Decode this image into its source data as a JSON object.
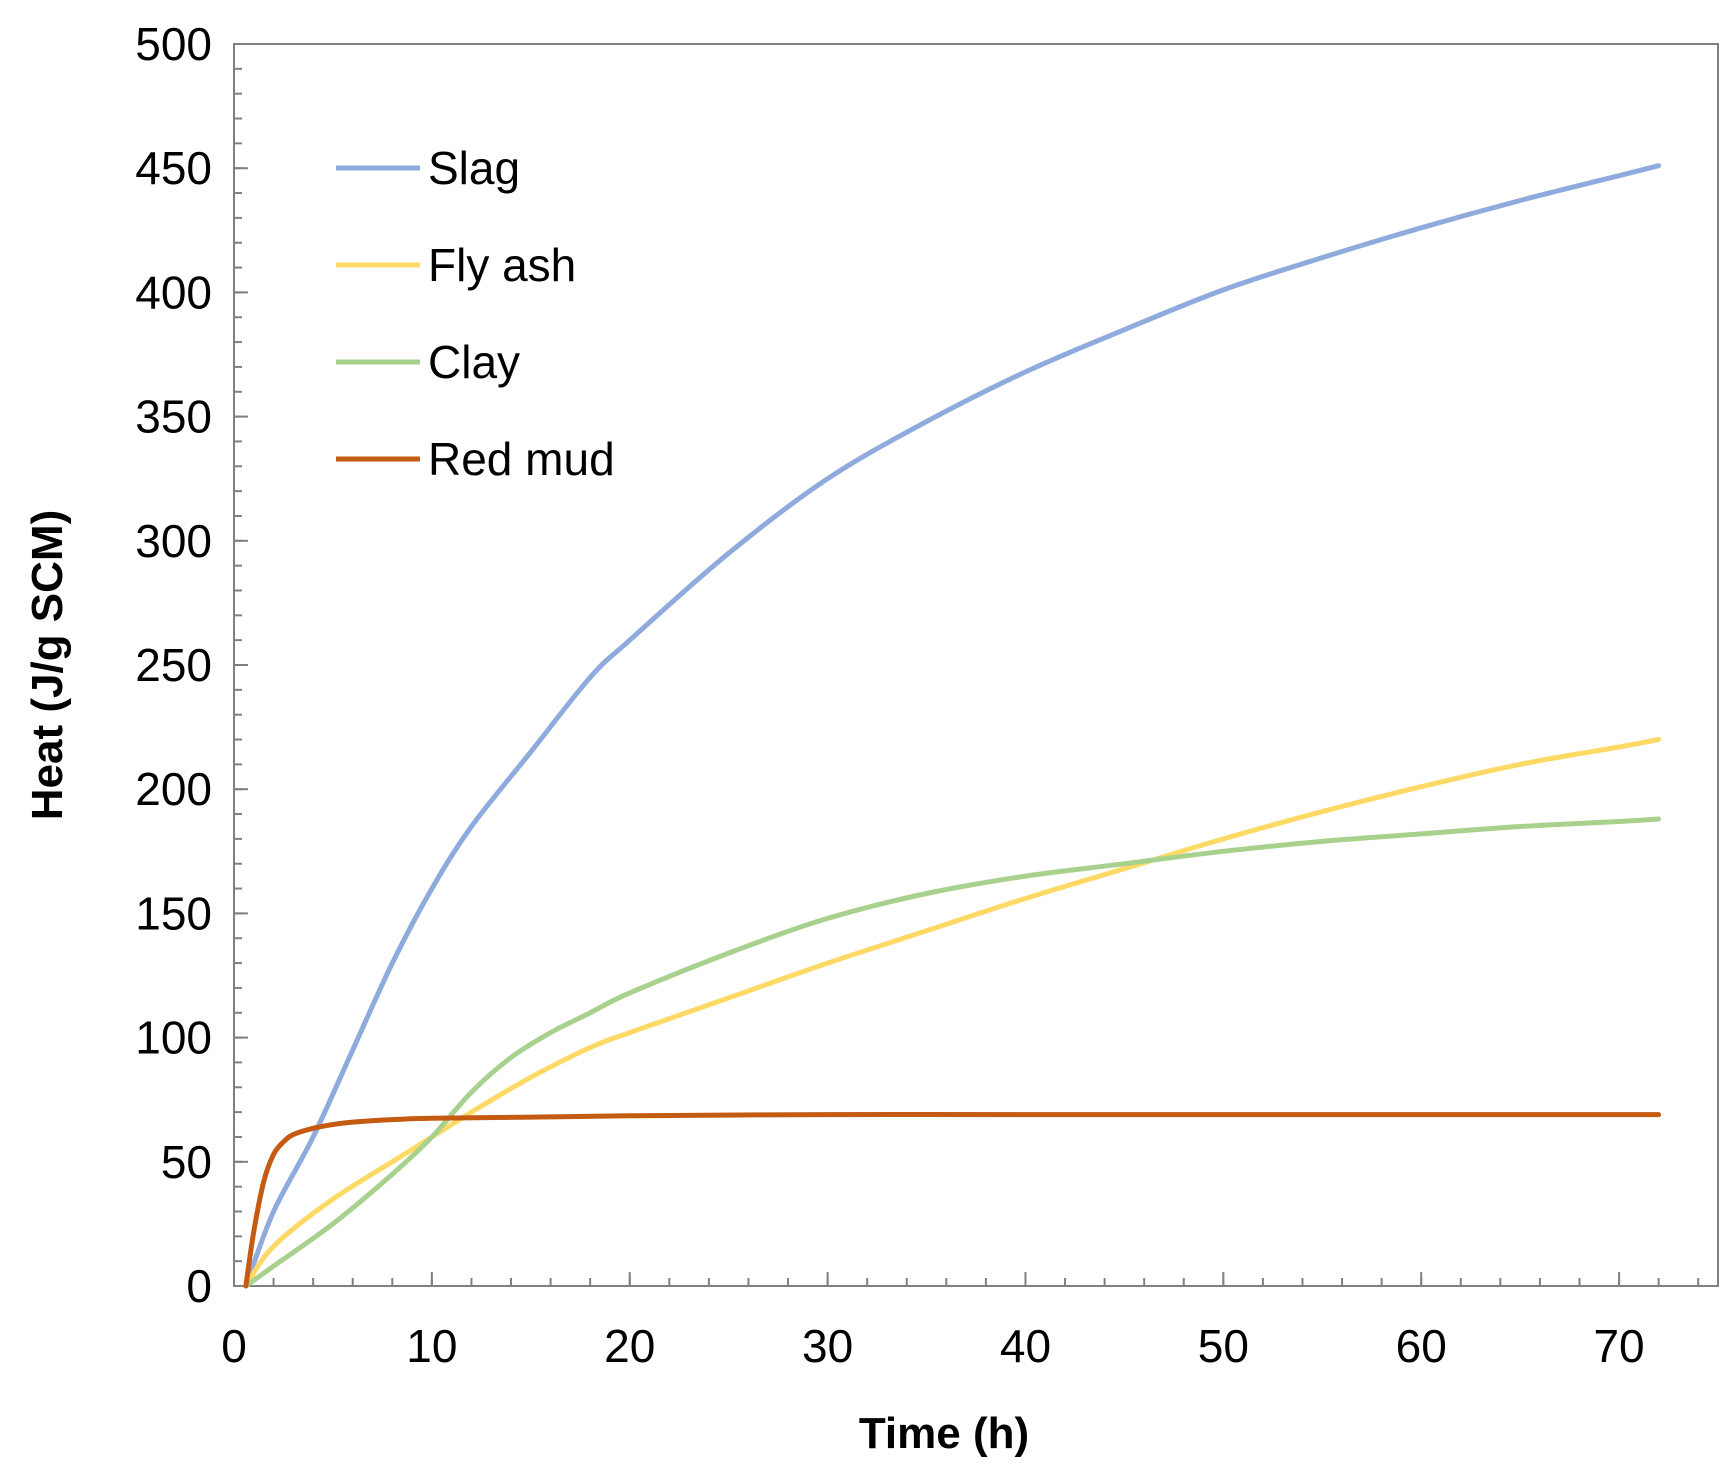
{
  "chart_data": {
    "type": "line",
    "title": "",
    "xlabel": "Time (h)",
    "ylabel": "Heat  (J/g SCM)",
    "xlim": [
      0,
      75
    ],
    "ylim": [
      0,
      500
    ],
    "x_ticks": [
      0,
      10,
      20,
      30,
      40,
      50,
      60,
      70
    ],
    "y_ticks": [
      0,
      50,
      100,
      150,
      200,
      250,
      300,
      350,
      400,
      450,
      500
    ],
    "x_minor_step": 2,
    "y_minor_step": 10,
    "grid": false,
    "legend_position": "top-left",
    "series": [
      {
        "name": "Slag",
        "color": "#8faadc",
        "x": [
          0.6,
          2,
          4,
          6,
          8,
          10,
          12,
          15,
          18,
          20,
          25,
          30,
          35,
          40,
          45,
          50,
          55,
          60,
          65,
          70,
          72
        ],
        "values": [
          0,
          30,
          60,
          95,
          130,
          160,
          185,
          215,
          245,
          260,
          295,
          325,
          348,
          368,
          385,
          401,
          414,
          426,
          437,
          447,
          451
        ]
      },
      {
        "name": "Fly ash",
        "color": "#ffd966",
        "x": [
          0.6,
          2,
          5,
          8,
          10,
          12,
          15,
          18,
          20,
          25,
          30,
          35,
          40,
          45,
          50,
          55,
          60,
          65,
          70,
          72
        ],
        "values": [
          0,
          16,
          35,
          50,
          60,
          70,
          84,
          96,
          102,
          116,
          130,
          143,
          156,
          168,
          180,
          191,
          201,
          210,
          217,
          220
        ]
      },
      {
        "name": "Clay",
        "color": "#a9d18e",
        "x": [
          0.6,
          2,
          5,
          8,
          10,
          12,
          14,
          16,
          18,
          20,
          25,
          30,
          35,
          40,
          45,
          50,
          55,
          60,
          65,
          70,
          72
        ],
        "values": [
          0,
          8,
          25,
          45,
          60,
          78,
          92,
          102,
          110,
          118,
          134,
          148,
          158,
          165,
          170,
          175,
          179,
          182,
          185,
          187,
          188
        ]
      },
      {
        "name": "Red mud",
        "color": "#c55a11",
        "x": [
          0.6,
          1,
          1.5,
          2,
          2.5,
          3,
          4,
          5,
          6,
          8,
          10,
          15,
          20,
          30,
          40,
          50,
          60,
          70,
          72
        ],
        "values": [
          0,
          22,
          42,
          53,
          58,
          61,
          63.5,
          65,
          66,
          67,
          67.5,
          68,
          68.5,
          69,
          69,
          69,
          69,
          69,
          69
        ]
      }
    ]
  }
}
